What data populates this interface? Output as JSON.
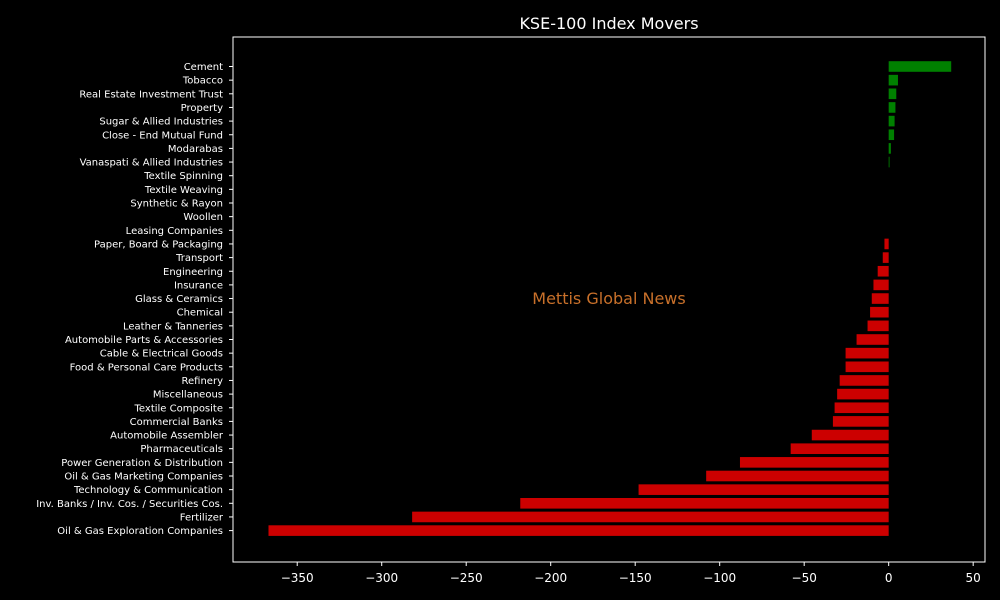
{
  "chart_data": {
    "type": "bar",
    "orientation": "horizontal",
    "title": "KSE-100 Index Movers",
    "xlabel": "",
    "ylabel": "",
    "xlim": [
      -388,
      57
    ],
    "xticks": [
      -350,
      -300,
      -250,
      -200,
      -150,
      -100,
      -50,
      0,
      50
    ],
    "xtick_labels": [
      "−350",
      "−300",
      "−250",
      "−200",
      "−150",
      "−100",
      "−50",
      "0",
      "50"
    ],
    "grid": false,
    "legend": "none",
    "annotation": "Mettis Global News",
    "categories": [
      "Cement",
      "Tobacco",
      "Real Estate Investment Trust",
      "Property",
      "Sugar & Allied Industries",
      "Close - End Mutual Fund",
      "Modarabas",
      "Vanaspati & Allied Industries",
      "Textile Spinning",
      "Textile Weaving",
      "Synthetic & Rayon",
      "Woollen",
      "Leasing Companies",
      "Paper, Board & Packaging",
      "Transport",
      "Engineering",
      "Insurance",
      "Glass & Ceramics",
      "Chemical",
      "Leather & Tanneries",
      "Automobile Parts & Accessories",
      "Cable & Electrical Goods",
      "Food & Personal Care Products",
      "Refinery",
      "Miscellaneous",
      "Textile Composite",
      "Commercial Banks",
      "Automobile Assembler",
      "Pharmaceuticals",
      "Power Generation & Distribution",
      "Oil & Gas Marketing Companies",
      "Technology & Communication",
      "Inv. Banks / Inv. Cos. / Securities Cos.",
      "Fertilizer",
      "Oil & Gas Exploration Companies"
    ],
    "values": [
      37,
      5.5,
      4.5,
      4,
      3.5,
      3.2,
      1.3,
      0.5,
      0,
      0,
      0,
      0,
      0,
      -2.5,
      -3.5,
      -6.5,
      -9,
      -10,
      -11,
      -12.5,
      -19,
      -25.5,
      -25.5,
      -29,
      -30.5,
      -32,
      -33,
      -45.5,
      -58,
      -88,
      -108,
      -148,
      -218,
      -282,
      -367
    ],
    "colors": {
      "positive": "#008000",
      "negative": "#cc0000",
      "background": "#000000",
      "axes": "#ffffff",
      "annotation": "#c8702a"
    }
  }
}
